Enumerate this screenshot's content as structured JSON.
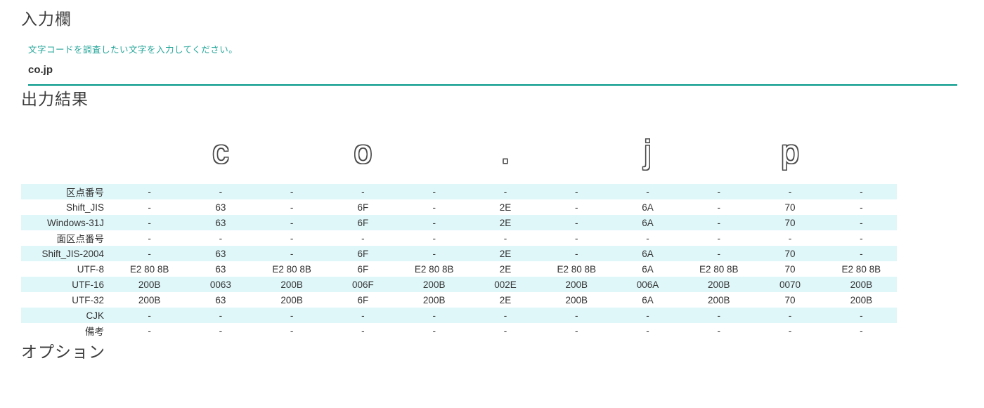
{
  "input_section": {
    "title": "入力欄",
    "helper": "文字コードを調査したい文字を入力してください。",
    "value": "co.jp"
  },
  "output_section": {
    "title": "出力結果",
    "columns": [
      "",
      "c",
      "",
      "o",
      "",
      ".",
      "",
      "j",
      "",
      "p",
      ""
    ],
    "rows": [
      {
        "label": "区点番号",
        "cells": [
          "-",
          "-",
          "-",
          "-",
          "-",
          "-",
          "-",
          "-",
          "-",
          "-",
          "-"
        ]
      },
      {
        "label": "Shift_JIS",
        "cells": [
          "-",
          "63",
          "-",
          "6F",
          "-",
          "2E",
          "-",
          "6A",
          "-",
          "70",
          "-"
        ]
      },
      {
        "label": "Windows-31J",
        "cells": [
          "-",
          "63",
          "-",
          "6F",
          "-",
          "2E",
          "-",
          "6A",
          "-",
          "70",
          "-"
        ]
      },
      {
        "label": "面区点番号",
        "cells": [
          "-",
          "-",
          "-",
          "-",
          "-",
          "-",
          "-",
          "-",
          "-",
          "-",
          "-"
        ]
      },
      {
        "label": "Shift_JIS-2004",
        "cells": [
          "-",
          "63",
          "-",
          "6F",
          "-",
          "2E",
          "-",
          "6A",
          "-",
          "70",
          "-"
        ]
      },
      {
        "label": "UTF-8",
        "cells": [
          "E2 80 8B",
          "63",
          "E2 80 8B",
          "6F",
          "E2 80 8B",
          "2E",
          "E2 80 8B",
          "6A",
          "E2 80 8B",
          "70",
          "E2 80 8B"
        ]
      },
      {
        "label": "UTF-16",
        "cells": [
          "200B",
          "0063",
          "200B",
          "006F",
          "200B",
          "002E",
          "200B",
          "006A",
          "200B",
          "0070",
          "200B"
        ]
      },
      {
        "label": "UTF-32",
        "cells": [
          "200B",
          "63",
          "200B",
          "6F",
          "200B",
          "2E",
          "200B",
          "6A",
          "200B",
          "70",
          "200B"
        ]
      },
      {
        "label": "CJK",
        "cells": [
          "-",
          "-",
          "-",
          "-",
          "-",
          "-",
          "-",
          "-",
          "-",
          "-",
          "-"
        ]
      },
      {
        "label": "備考",
        "cells": [
          "-",
          "-",
          "-",
          "-",
          "-",
          "-",
          "-",
          "-",
          "-",
          "-",
          "-"
        ]
      }
    ]
  },
  "options_section": {
    "title": "オプション"
  },
  "colors": {
    "accent": "#009688",
    "helper_text": "#26a69a",
    "row_alt": "#e0f7fa",
    "text": "#333333"
  }
}
